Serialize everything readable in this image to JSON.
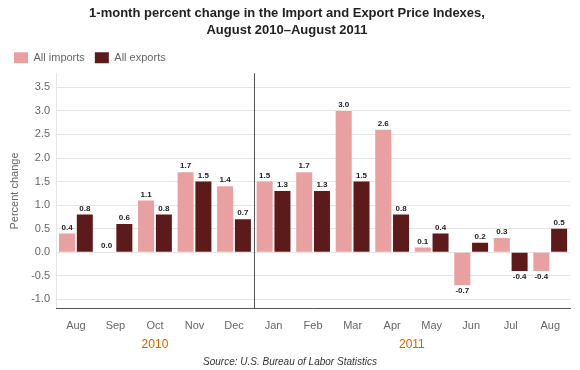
{
  "chart_data": {
    "type": "bar",
    "title": "1-month percent change in the Import and Export Price Indexes,",
    "subtitle": "August 2010–August 2011",
    "categories": [
      "Aug",
      "Sep",
      "Oct",
      "Nov",
      "Dec",
      "Jan",
      "Feb",
      "Mar",
      "Apr",
      "May",
      "Jun",
      "Jul",
      "Aug"
    ],
    "series": [
      {
        "name": "All imports",
        "color": "#e8a0a0",
        "values": [
          0.4,
          0.0,
          1.1,
          1.7,
          1.4,
          1.5,
          1.7,
          3.0,
          2.6,
          0.1,
          -0.7,
          0.3,
          -0.4
        ],
        "value_labels": [
          "0.4",
          "0.0",
          "1.1",
          "1.7",
          "1.4",
          "1.5",
          "1.7",
          "3.0",
          "2.6",
          "0.1",
          "-0.7",
          "0.3",
          "-0.4"
        ]
      },
      {
        "name": "All exports",
        "color": "#5c1a1a",
        "values": [
          0.8,
          0.6,
          0.8,
          1.5,
          0.7,
          1.3,
          1.3,
          1.5,
          0.8,
          0.4,
          0.2,
          -0.4,
          0.5
        ],
        "value_labels": [
          "0.8",
          "0.6",
          "0.8",
          "1.5",
          "0.7",
          "1.3",
          "1.3",
          "1.5",
          "0.8",
          "0.4",
          "0.2",
          "-0.4",
          "0.5"
        ]
      }
    ],
    "ylabel": "Percent change",
    "ylim": [
      -1.2,
      3.8
    ],
    "yticks": [
      {
        "value": -1.0,
        "label": "-1.0"
      },
      -0.5,
      {
        "value": 0.0,
        "label": "0.0"
      },
      0.5,
      {
        "value": 1.0,
        "label": "1.0"
      },
      1.5,
      {
        "value": 2.0,
        "label": "2.0"
      },
      2.5,
      {
        "value": 3.0,
        "label": "3.0"
      },
      3.5
    ],
    "grid": true,
    "legend": "upper left",
    "data_labels": true,
    "annotations": [
      {
        "text": "2010",
        "color": "#cc6600",
        "first": 0,
        "last": 4
      },
      {
        "text": "2011",
        "color": "#cc6600",
        "first": 5,
        "last": 12
      }
    ],
    "source": "Source: U.S. Bureau of Labor Statistics"
  }
}
